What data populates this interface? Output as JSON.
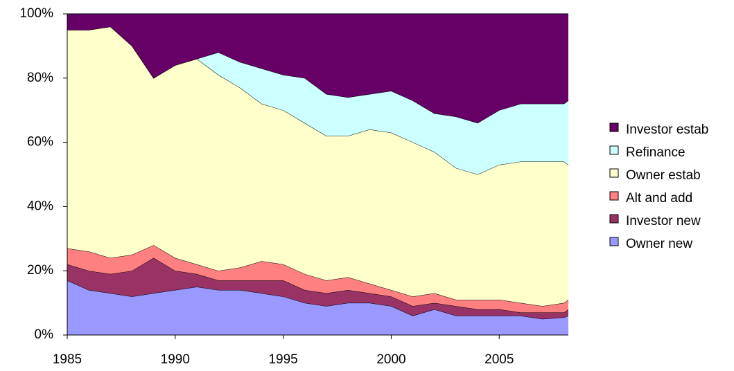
{
  "chart_data": {
    "type": "stacked_area_100",
    "x": [
      1985,
      1986,
      1987,
      1988,
      1989,
      1990,
      1991,
      1992,
      1993,
      1994,
      1995,
      1996,
      1997,
      1998,
      1999,
      2000,
      2001,
      2002,
      2003,
      2004,
      2005,
      2006,
      2007,
      2008,
      2008.2
    ],
    "series": [
      {
        "name": "Owner new",
        "color": "#9999ff",
        "values": [
          17,
          14,
          13,
          12,
          13,
          14,
          15,
          14,
          14,
          13,
          12,
          10,
          9,
          10,
          10,
          9,
          6,
          8,
          6,
          6,
          6,
          6,
          5,
          5.5,
          6
        ]
      },
      {
        "name": "Investor new",
        "color": "#993366",
        "values": [
          5,
          6,
          6,
          8,
          11,
          6,
          4,
          3,
          3,
          4,
          5,
          4,
          4,
          4,
          3,
          3,
          3,
          2,
          3,
          2,
          2,
          1,
          2,
          1.5,
          2
        ]
      },
      {
        "name": "Alt and add",
        "color": "#ff8080",
        "values": [
          5,
          6,
          5,
          5,
          4,
          4,
          3,
          3,
          4,
          6,
          5,
          5,
          4,
          4,
          3,
          2,
          3,
          3,
          2,
          3,
          3,
          3,
          2,
          3,
          3
        ]
      },
      {
        "name": "Owner estab",
        "color": "#ffffcc",
        "values": [
          68,
          69,
          72,
          65,
          52,
          60,
          64,
          61,
          56,
          49,
          48,
          47,
          45,
          44,
          48,
          49,
          48,
          44,
          41,
          39,
          42,
          44,
          45,
          44,
          42
        ]
      },
      {
        "name": "Refinance",
        "color": "#ccffff",
        "values": [
          0,
          0,
          0,
          0,
          0,
          0,
          0,
          7,
          8,
          11,
          11,
          14,
          13,
          12,
          11,
          13,
          13,
          12,
          16,
          16,
          17,
          18,
          18,
          18,
          20
        ]
      },
      {
        "name": "Investor estab",
        "color": "#660066",
        "values": [
          5,
          5,
          4,
          10,
          20,
          16,
          14,
          12,
          15,
          17,
          19,
          20,
          25,
          26,
          25,
          24,
          27,
          31,
          32,
          34,
          30,
          28,
          28,
          28,
          27
        ]
      }
    ],
    "xlim": [
      1985,
      2008.2
    ],
    "xticks": [
      1985,
      1990,
      1995,
      2000,
      2005
    ],
    "ylim": [
      0,
      100
    ],
    "yticks": [
      {
        "value": 0,
        "label": "0%"
      },
      {
        "value": 20,
        "label": "20%"
      },
      {
        "value": 40,
        "label": "40%"
      },
      {
        "value": 60,
        "label": "60%"
      },
      {
        "value": 80,
        "label": "80%"
      },
      {
        "value": 100,
        "label": "100%"
      }
    ],
    "legend": "right"
  }
}
